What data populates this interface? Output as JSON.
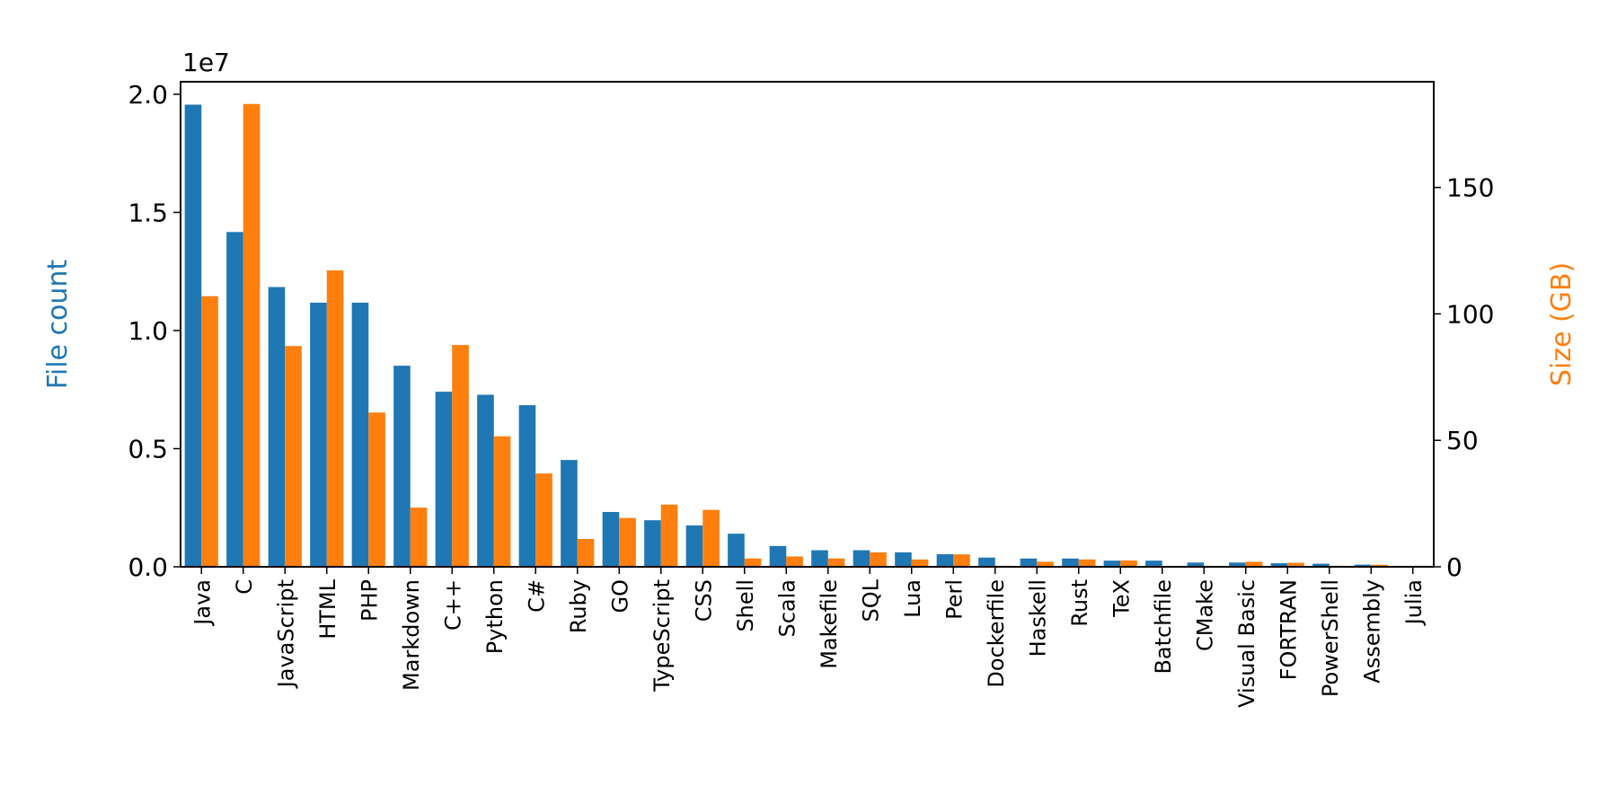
{
  "chart_data": {
    "type": "bar",
    "ylabel": "File count",
    "y2label": "Size (GB)",
    "y_offset_label": "1e7",
    "categories": [
      "Java",
      "C",
      "JavaScript",
      "HTML",
      "PHP",
      "Markdown",
      "C++",
      "Python",
      "C#",
      "Ruby",
      "GO",
      "TypeScript",
      "CSS",
      "Shell",
      "Scala",
      "Makefile",
      "SQL",
      "Lua",
      "Perl",
      "Dockerfile",
      "Haskell",
      "Rust",
      "TeX",
      "Batchfile",
      "CMake",
      "Visual Basic",
      "FORTRAN",
      "PowerShell",
      "Assembly",
      "Julia"
    ],
    "series": [
      {
        "name": "File count",
        "color": "#1f77b4",
        "axis": "y",
        "values": [
          1.956,
          1.417,
          1.184,
          1.118,
          1.118,
          0.851,
          0.741,
          0.728,
          0.684,
          0.452,
          0.232,
          0.197,
          0.175,
          0.14,
          0.088,
          0.07,
          0.07,
          0.061,
          0.053,
          0.039,
          0.035,
          0.035,
          0.026,
          0.026,
          0.018,
          0.018,
          0.015,
          0.013,
          0.009,
          0.004
        ]
      },
      {
        "name": "Size (GB)",
        "color": "#ff7f0e",
        "axis": "y2",
        "values": [
          107,
          183,
          87.3,
          117.2,
          61,
          23.4,
          87.7,
          51.6,
          36.9,
          11,
          19.3,
          24.6,
          22.5,
          3.3,
          4.1,
          3.3,
          5.7,
          2.9,
          4.9,
          0.4,
          2,
          2.9,
          2.5,
          0,
          0.2,
          2,
          1.6,
          0.4,
          0.8,
          0.4
        ]
      }
    ],
    "ylim": [
      0,
      2.053
    ],
    "yticks": [
      {
        "value": 0,
        "label": "0.0"
      },
      0.5,
      {
        "value": 1,
        "label": "1.0"
      },
      1.5,
      {
        "value": 2,
        "label": "2.0"
      }
    ],
    "y2lim": [
      0,
      191.8
    ],
    "y2ticks": [
      0,
      50,
      100,
      150
    ]
  }
}
